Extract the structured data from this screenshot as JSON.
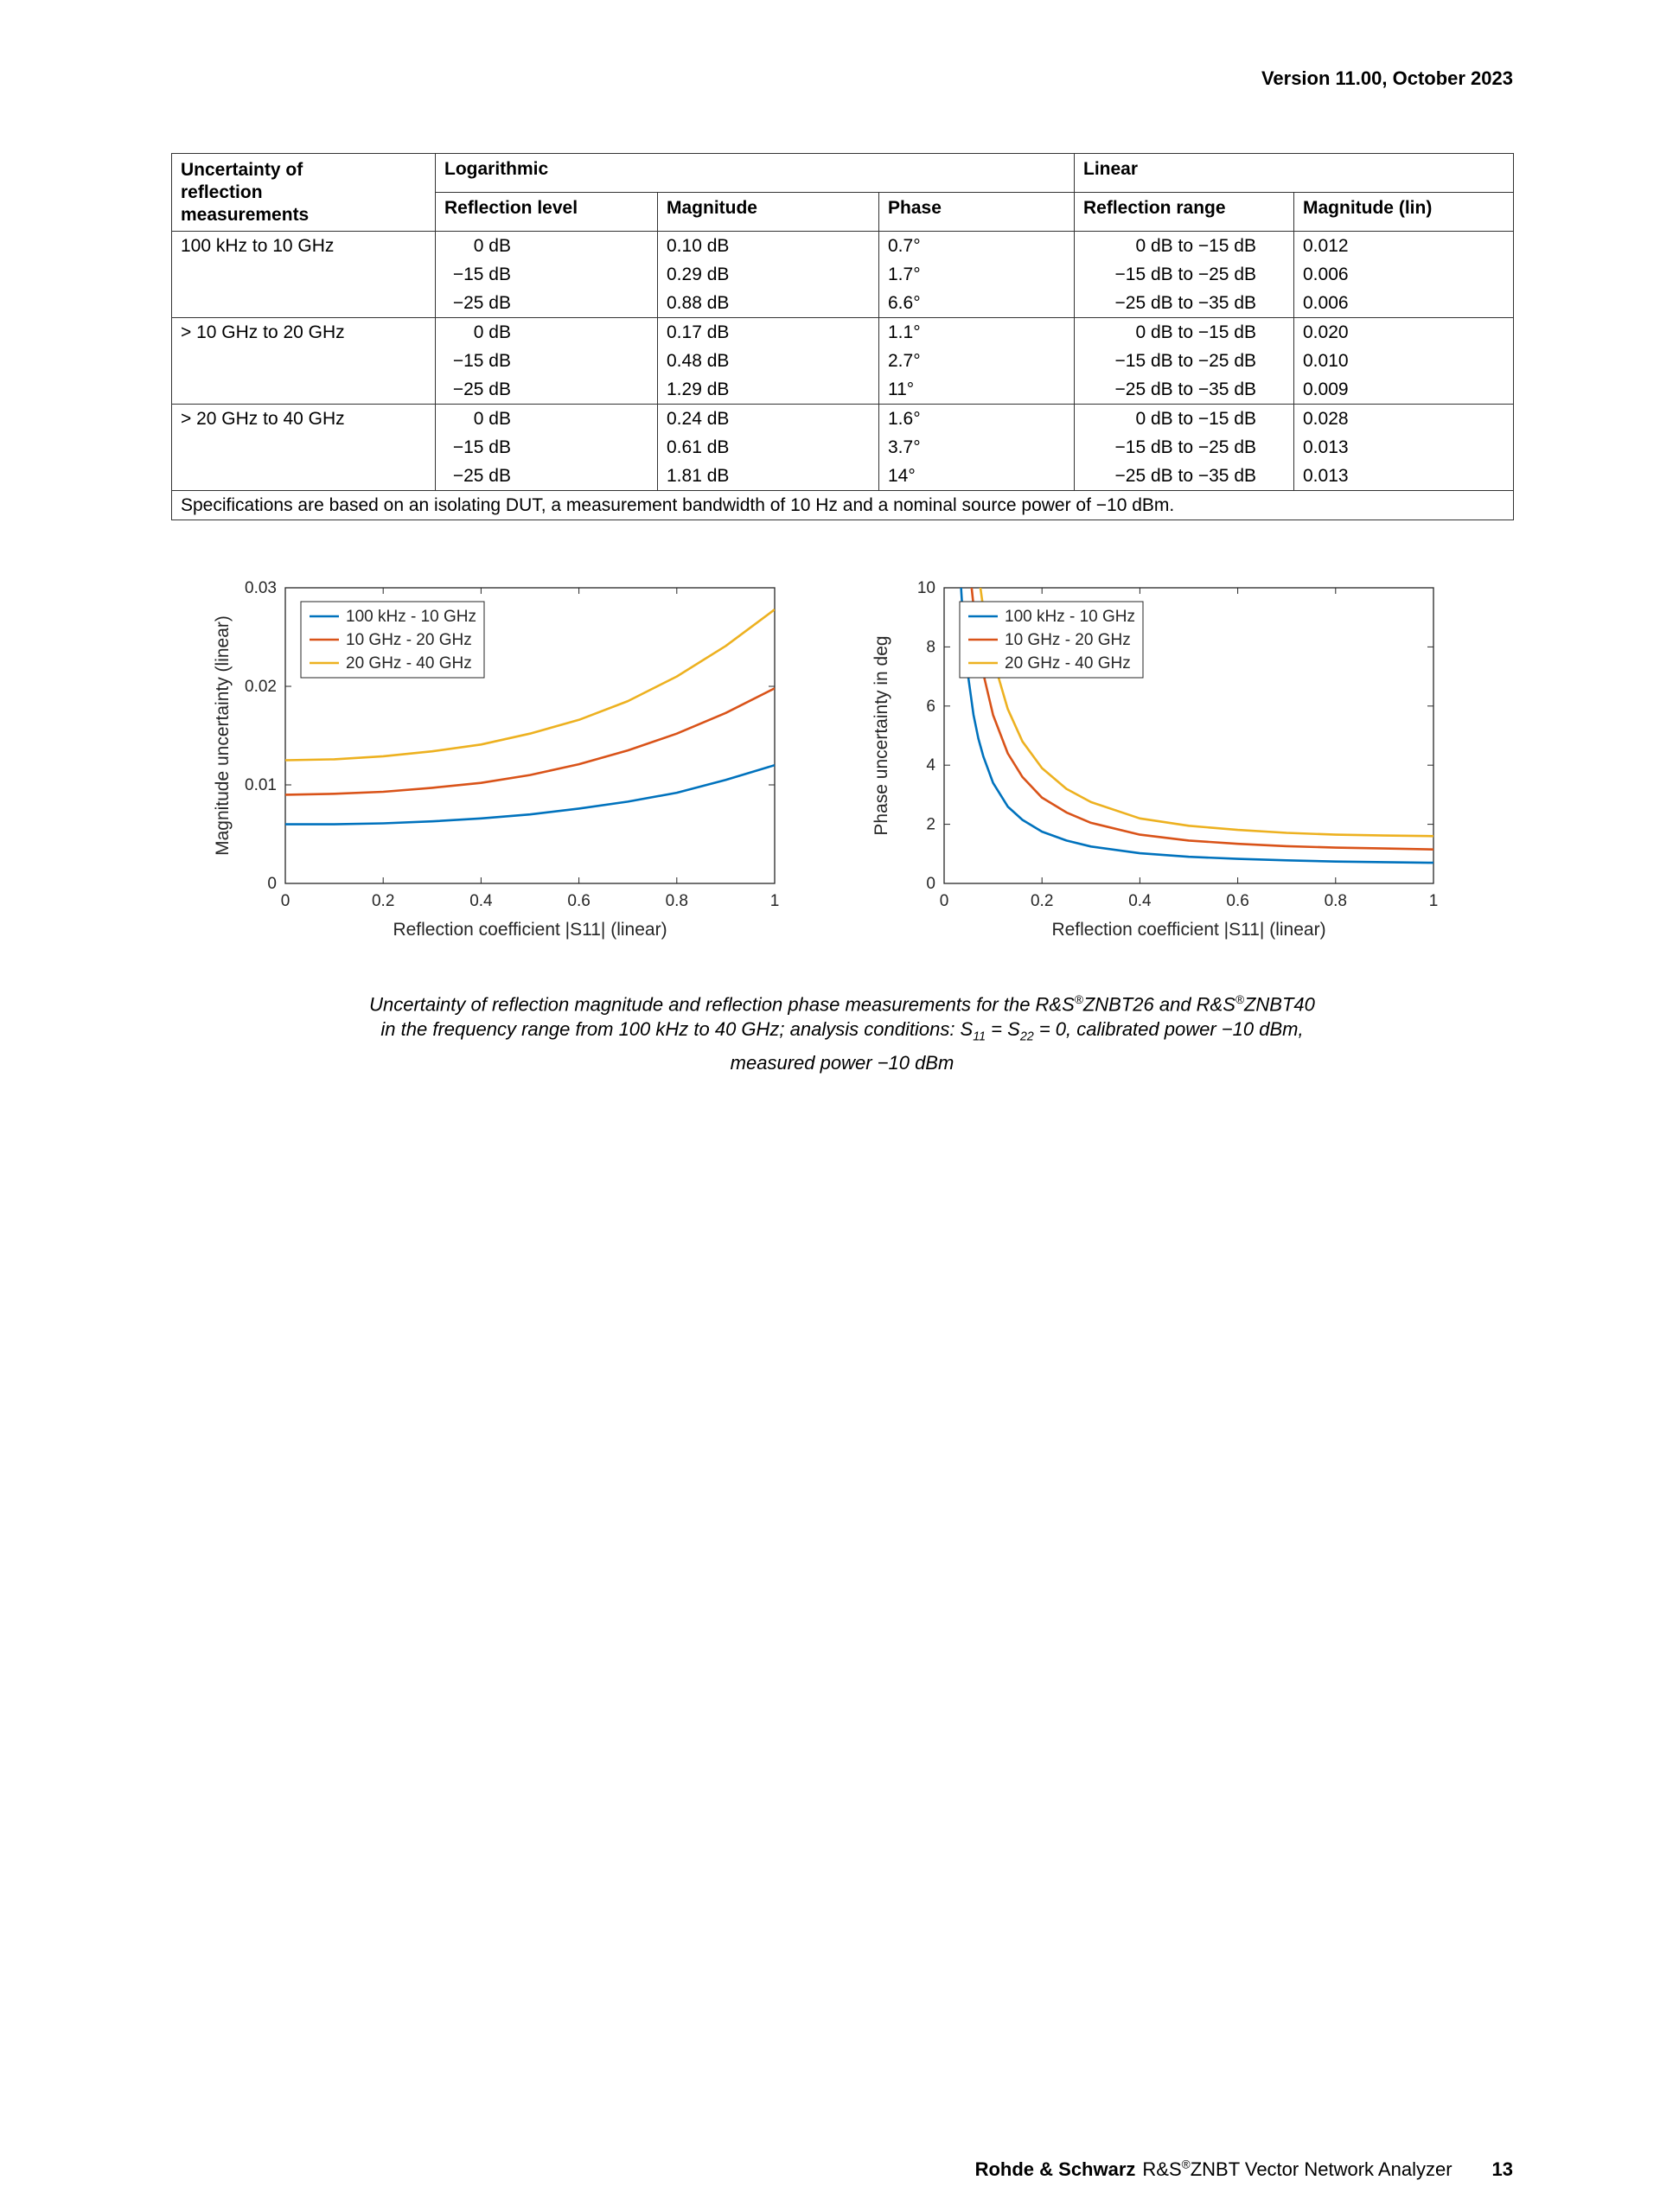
{
  "page": {
    "version": "Version 11.00, October 2023",
    "footer": {
      "brand": "Rohde & Schwarz",
      "product_prefix": "R&S",
      "reg_mark": "®",
      "product_suffix": "ZNBT Vector Network Analyzer",
      "page_number": "13"
    }
  },
  "table": {
    "corner_lines": [
      "Uncertainty of",
      "reflection",
      "measurements"
    ],
    "group_headers": {
      "logarithmic": "Logarithmic",
      "linear": "Linear"
    },
    "columns": [
      "Reflection level",
      "Magnitude",
      "Phase",
      "Reflection range",
      "Magnitude (lin)"
    ],
    "groups": [
      {
        "label": "100 kHz to 10 GHz",
        "rows": [
          {
            "level": "0 dB",
            "magnitude": "0.10 dB",
            "phase": "0.7°",
            "range": "0 dB to −15 dB",
            "mag_lin": "0.012"
          },
          {
            "level": "−15 dB",
            "magnitude": "0.29 dB",
            "phase": "1.7°",
            "range": "−15 dB to −25 dB",
            "mag_lin": "0.006"
          },
          {
            "level": "−25 dB",
            "magnitude": "0.88 dB",
            "phase": "6.6°",
            "range": "−25 dB to −35 dB",
            "mag_lin": "0.006"
          }
        ]
      },
      {
        "label": "> 10 GHz to 20 GHz",
        "rows": [
          {
            "level": "0 dB",
            "magnitude": "0.17 dB",
            "phase": "1.1°",
            "range": "0 dB to −15 dB",
            "mag_lin": "0.020"
          },
          {
            "level": "−15 dB",
            "magnitude": "0.48 dB",
            "phase": "2.7°",
            "range": "−15 dB to −25 dB",
            "mag_lin": "0.010"
          },
          {
            "level": "−25 dB",
            "magnitude": "1.29 dB",
            "phase": "11°",
            "range": "−25 dB to −35 dB",
            "mag_lin": "0.009"
          }
        ]
      },
      {
        "label": "> 20 GHz to 40 GHz",
        "rows": [
          {
            "level": "0 dB",
            "magnitude": "0.24 dB",
            "phase": "1.6°",
            "range": "0 dB to −15 dB",
            "mag_lin": "0.028"
          },
          {
            "level": "−15 dB",
            "magnitude": "0.61 dB",
            "phase": "3.7°",
            "range": "−15 dB to −25 dB",
            "mag_lin": "0.013"
          },
          {
            "level": "−25 dB",
            "magnitude": "1.81 dB",
            "phase": "14°",
            "range": "−25 dB to −35 dB",
            "mag_lin": "0.013"
          }
        ]
      }
    ],
    "note": "Specifications are based on an isolating DUT, a measurement bandwidth of 10 Hz and a nominal source power of −10 dBm."
  },
  "chart_data": [
    {
      "type": "line",
      "title": "",
      "xlabel": "Reflection coefficient |S11| (linear)",
      "ylabel": "Magnitude uncertainty (linear)",
      "xlim": [
        0,
        1
      ],
      "ylim": [
        0,
        0.03
      ],
      "xticks": [
        0,
        0.2,
        0.4,
        0.6,
        0.8,
        1
      ],
      "xticklabels": [
        "0",
        "0.2",
        "0.4",
        "0.6",
        "0.8",
        "1"
      ],
      "yticks": [
        0,
        0.01,
        0.02,
        0.03
      ],
      "yticklabels": [
        "0",
        "0.01",
        "0.02",
        "0.03"
      ],
      "grid": false,
      "legend_position": "top-left",
      "colors": [
        "#0072BD",
        "#D95319",
        "#EDB120"
      ],
      "series": [
        {
          "name": "100 kHz - 10 GHz",
          "x": [
            0,
            0.1,
            0.2,
            0.3,
            0.4,
            0.5,
            0.6,
            0.7,
            0.8,
            0.9,
            1.0
          ],
          "y": [
            0.006,
            0.006,
            0.0061,
            0.0063,
            0.0066,
            0.007,
            0.0076,
            0.0083,
            0.0092,
            0.0105,
            0.012
          ]
        },
        {
          "name": "10 GHz - 20 GHz",
          "x": [
            0,
            0.1,
            0.2,
            0.3,
            0.4,
            0.5,
            0.6,
            0.7,
            0.8,
            0.9,
            1.0
          ],
          "y": [
            0.009,
            0.0091,
            0.0093,
            0.0097,
            0.0102,
            0.011,
            0.0121,
            0.0135,
            0.0152,
            0.0173,
            0.0198
          ]
        },
        {
          "name": "20 GHz - 40 GHz",
          "x": [
            0,
            0.1,
            0.2,
            0.3,
            0.4,
            0.5,
            0.6,
            0.7,
            0.8,
            0.9,
            1.0
          ],
          "y": [
            0.0125,
            0.0126,
            0.0129,
            0.0134,
            0.0141,
            0.0152,
            0.0166,
            0.0185,
            0.021,
            0.0241,
            0.0278
          ]
        }
      ]
    },
    {
      "type": "line",
      "title": "",
      "xlabel": "Reflection coefficient |S11| (linear)",
      "ylabel": "Phase uncertainty in deg",
      "xlim": [
        0,
        1
      ],
      "ylim": [
        0,
        10
      ],
      "xticks": [
        0,
        0.2,
        0.4,
        0.6,
        0.8,
        1
      ],
      "xticklabels": [
        "0",
        "0.2",
        "0.4",
        "0.6",
        "0.8",
        "1"
      ],
      "yticks": [
        0,
        2,
        4,
        6,
        8,
        10
      ],
      "yticklabels": [
        "0",
        "2",
        "4",
        "6",
        "8",
        "10"
      ],
      "grid": false,
      "legend_position": "top-left",
      "colors": [
        "#0072BD",
        "#D95319",
        "#EDB120"
      ],
      "series": [
        {
          "name": "100 kHz - 10 GHz",
          "x": [
            0.03,
            0.035,
            0.04,
            0.05,
            0.06,
            0.07,
            0.08,
            0.1,
            0.13,
            0.16,
            0.2,
            0.25,
            0.3,
            0.4,
            0.5,
            0.6,
            0.7,
            0.8,
            0.9,
            1.0
          ],
          "y": [
            11.5,
            9.9,
            8.6,
            6.9,
            5.7,
            4.9,
            4.3,
            3.4,
            2.6,
            2.15,
            1.75,
            1.45,
            1.25,
            1.02,
            0.9,
            0.83,
            0.78,
            0.74,
            0.72,
            0.7
          ]
        },
        {
          "name": "10 GHz - 20 GHz",
          "x": [
            0.048,
            0.055,
            0.06,
            0.07,
            0.08,
            0.1,
            0.13,
            0.16,
            0.2,
            0.25,
            0.3,
            0.4,
            0.5,
            0.6,
            0.7,
            0.8,
            0.9,
            1.0
          ],
          "y": [
            11.5,
            10.2,
            9.4,
            8.1,
            7.1,
            5.7,
            4.4,
            3.6,
            2.9,
            2.4,
            2.05,
            1.65,
            1.45,
            1.34,
            1.26,
            1.21,
            1.18,
            1.15
          ]
        },
        {
          "name": "20 GHz - 40 GHz",
          "x": [
            0.063,
            0.07,
            0.08,
            0.1,
            0.13,
            0.16,
            0.2,
            0.25,
            0.3,
            0.4,
            0.5,
            0.6,
            0.7,
            0.8,
            0.9,
            1.0
          ],
          "y": [
            11.5,
            10.5,
            9.3,
            7.6,
            5.9,
            4.8,
            3.9,
            3.2,
            2.75,
            2.2,
            1.95,
            1.81,
            1.71,
            1.65,
            1.62,
            1.6
          ]
        }
      ]
    }
  ],
  "caption": {
    "line1": {
      "a": "Uncertainty of reflection magnitude and reflection phase measurements for the R&S",
      "reg1": "®",
      "b": "ZNBT26 and R&S",
      "reg2": "®",
      "c": "ZNBT40"
    },
    "line2": {
      "a": "in the frequency range from 100 kHz to 40 GHz; analysis conditions: S",
      "sub1": "11",
      "b": " = S",
      "sub2": "22",
      "c": " = 0, calibrated power −10 dBm,"
    },
    "line3": "measured power −10 dBm"
  }
}
